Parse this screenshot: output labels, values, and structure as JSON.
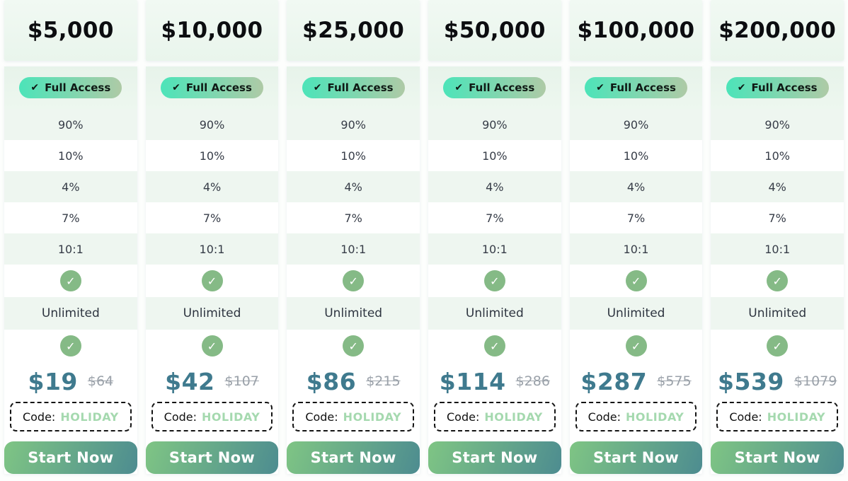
{
  "theme": {
    "accent_teal": "#3f7a8e",
    "badge_gradient_start": "#4ce4b9",
    "badge_gradient_end": "#aecaa6",
    "button_gradient_start": "#7fc584",
    "button_gradient_end": "#4d8c90",
    "check_circle_green": "#85ba86",
    "row_tint_green": "#eef6f0",
    "code_value_green": "#a5d9af",
    "strikethrough_gray": "#9aa1a9"
  },
  "badge": {
    "label": "Full Access"
  },
  "promo": {
    "label": "Code:",
    "value": "HOLIDAY"
  },
  "cta": {
    "label": "Start Now"
  },
  "plans": [
    {
      "account_size": "$5,000",
      "features": [
        "90%",
        "10%",
        "4%",
        "7%",
        "10:1"
      ],
      "unlimited": "Unlimited",
      "price": "$19",
      "original_price": "$64"
    },
    {
      "account_size": "$10,000",
      "features": [
        "90%",
        "10%",
        "4%",
        "7%",
        "10:1"
      ],
      "unlimited": "Unlimited",
      "price": "$42",
      "original_price": "$107"
    },
    {
      "account_size": "$25,000",
      "features": [
        "90%",
        "10%",
        "4%",
        "7%",
        "10:1"
      ],
      "unlimited": "Unlimited",
      "price": "$86",
      "original_price": "$215"
    },
    {
      "account_size": "$50,000",
      "features": [
        "90%",
        "10%",
        "4%",
        "7%",
        "10:1"
      ],
      "unlimited": "Unlimited",
      "price": "$114",
      "original_price": "$286"
    },
    {
      "account_size": "$100,000",
      "features": [
        "90%",
        "10%",
        "4%",
        "7%",
        "10:1"
      ],
      "unlimited": "Unlimited",
      "price": "$287",
      "original_price": "$575"
    },
    {
      "account_size": "$200,000",
      "features": [
        "90%",
        "10%",
        "4%",
        "7%",
        "10:1"
      ],
      "unlimited": "Unlimited",
      "price": "$539",
      "original_price": "$1079"
    }
  ]
}
